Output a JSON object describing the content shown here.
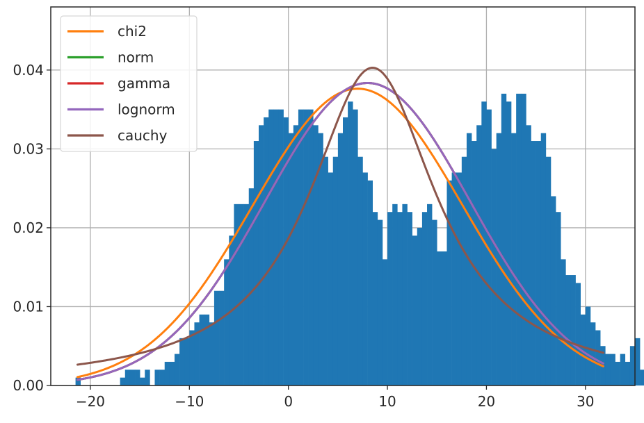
{
  "chart_data": {
    "type": "bar",
    "subtype": "histogram with fitted distribution curves",
    "title": "",
    "xlabel": "",
    "ylabel": "",
    "xlim": [
      -24,
      35
    ],
    "ylim": [
      0,
      0.048
    ],
    "xticks": [
      -20,
      -10,
      0,
      10,
      20,
      30
    ],
    "xtick_labels": [
      "−20",
      "−10",
      "0",
      "10",
      "20",
      "30"
    ],
    "yticks": [
      0,
      0.01,
      0.02,
      0.03,
      0.04
    ],
    "ytick_labels": [
      "0.00",
      "0.01",
      "0.02",
      "0.03",
      "0.04"
    ],
    "grid": true,
    "legend_position": "top-left",
    "histogram": {
      "color": "#1f77b4",
      "bin_start": -21.5,
      "bin_width": 0.5,
      "values": [
        0.001,
        0,
        0,
        0,
        0,
        0,
        0,
        0,
        0,
        0.001,
        0.002,
        0.002,
        0.002,
        0.001,
        0.002,
        0,
        0.002,
        0.002,
        0.003,
        0.003,
        0.004,
        0.006,
        0.006,
        0.007,
        0.008,
        0.009,
        0.009,
        0.008,
        0.012,
        0.012,
        0.016,
        0.019,
        0.023,
        0.023,
        0.023,
        0.025,
        0.031,
        0.033,
        0.034,
        0.035,
        0.035,
        0.035,
        0.034,
        0.032,
        0.033,
        0.035,
        0.035,
        0.035,
        0.033,
        0.032,
        0.029,
        0.027,
        0.029,
        0.032,
        0.034,
        0.036,
        0.035,
        0.029,
        0.027,
        0.026,
        0.022,
        0.021,
        0.016,
        0.022,
        0.023,
        0.022,
        0.023,
        0.022,
        0.019,
        0.02,
        0.022,
        0.023,
        0.021,
        0.017,
        0.017,
        0.026,
        0.027,
        0.027,
        0.029,
        0.032,
        0.031,
        0.033,
        0.036,
        0.035,
        0.03,
        0.032,
        0.037,
        0.036,
        0.032,
        0.037,
        0.037,
        0.033,
        0.031,
        0.031,
        0.032,
        0.029,
        0.024,
        0.022,
        0.016,
        0.014,
        0.014,
        0.013,
        0.009,
        0.01,
        0.008,
        0.007,
        0.005,
        0.004,
        0.004,
        0.003,
        0.004,
        0.003,
        0.005,
        0.006,
        0.002,
        0.001,
        0,
        0.001,
        0.001
      ]
    },
    "series": [
      {
        "name": "chi2",
        "color": "#ff7f0e",
        "dist": "normal",
        "mean": 7.0,
        "sd": 10.6
      },
      {
        "name": "norm",
        "color": "#2ca02c",
        "dist": "normal",
        "mean": 8.0,
        "sd": 10.4
      },
      {
        "name": "gamma",
        "color": "#d62728",
        "dist": "normal",
        "mean": 8.0,
        "sd": 10.4
      },
      {
        "name": "lognorm",
        "color": "#9467bd",
        "dist": "normal",
        "mean": 8.0,
        "sd": 10.4
      },
      {
        "name": "cauchy",
        "color": "#8c564b",
        "dist": "cauchy",
        "loc": 8.5,
        "scale": 7.9
      }
    ],
    "curve_x_range": [
      -21.3,
      31.8
    ]
  }
}
